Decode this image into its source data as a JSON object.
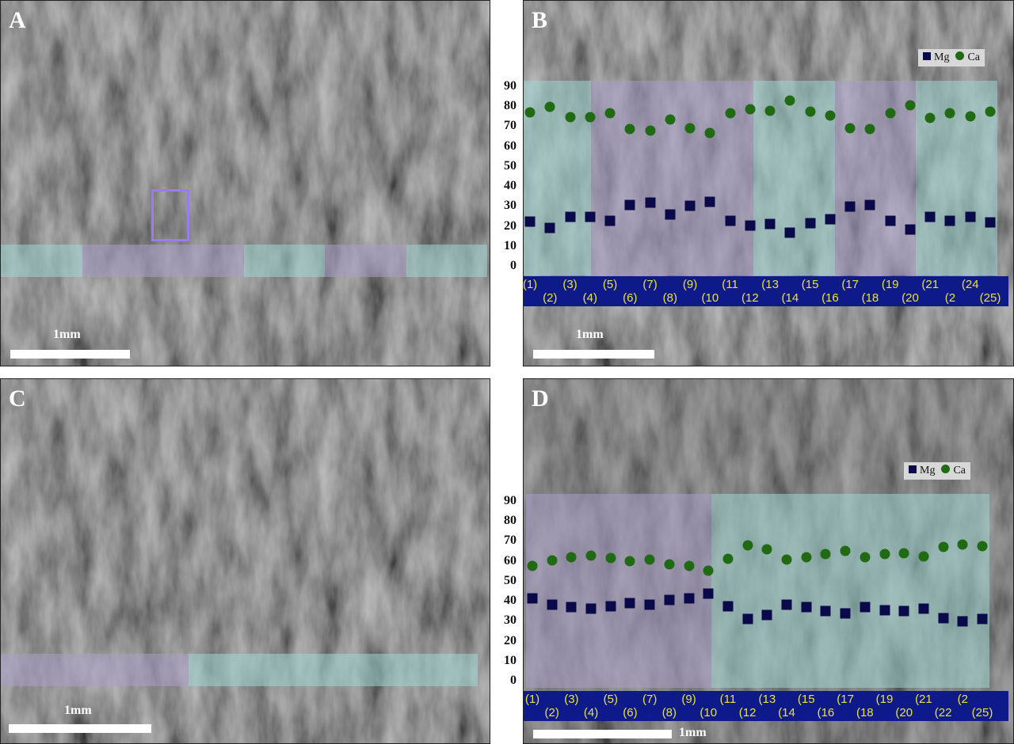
{
  "panels": {
    "A": {
      "letter": "A",
      "scale": "1mm"
    },
    "B": {
      "letter": "B",
      "scale": "1mm"
    },
    "C": {
      "letter": "C",
      "scale": "1mm"
    },
    "D": {
      "letter": "D",
      "scale": "1mm"
    }
  },
  "legend": {
    "mg": "Mg",
    "ca": "Ca"
  },
  "colors": {
    "mg": "#0a0a4a",
    "ca": "#1f6a12",
    "teal_band": "#9fd6cf",
    "purple_band": "#a99ec9",
    "label_bar": "#0f1a8a",
    "label_text": "#e8e23a",
    "roi_box": "#9b7cf0"
  },
  "chart_data": [
    {
      "panel": "B",
      "type": "scatter",
      "ylim": [
        0,
        90
      ],
      "yticks": [
        "90",
        "80",
        "70",
        "60",
        "50",
        "40",
        "30",
        "20",
        "10",
        "0"
      ],
      "xlabels": [
        "(1)",
        "(2)",
        "(3)",
        "(4)",
        "(5)",
        "(6)",
        "(7)",
        "(8)",
        "(9)",
        "(10",
        "(11",
        "(12",
        "(13",
        "(14",
        "(15",
        "(16",
        "(17",
        "(18",
        "(19",
        "(20",
        "(21",
        "(2",
        "(24",
        "(25)"
      ],
      "series": [
        {
          "name": "Mg",
          "marker": "square",
          "values": [
            22.5,
            19.6,
            25.0,
            24.8,
            23.1,
            30.8,
            32.0,
            26.1,
            30.6,
            32.5,
            22.9,
            20.8,
            21.6,
            16.9,
            22.0,
            23.7,
            30.3,
            30.8,
            23.1,
            18.8,
            25.0,
            22.8,
            24.8,
            22.1
          ]
        },
        {
          "name": "Ca",
          "marker": "circle",
          "values": [
            77.5,
            80.1,
            75.0,
            75.0,
            76.9,
            69.0,
            68.0,
            73.6,
            69.2,
            67.2,
            76.8,
            78.8,
            78.0,
            83.3,
            77.9,
            75.8,
            69.4,
            68.8,
            76.9,
            80.9,
            74.7,
            76.9,
            75.3,
            77.6
          ]
        }
      ],
      "bands": [
        "teal",
        "purple",
        "teal",
        "purple",
        "teal"
      ],
      "grid": false,
      "legend_position": "top-right"
    },
    {
      "panel": "D",
      "type": "scatter",
      "ylim": [
        0,
        90
      ],
      "yticks": [
        "90",
        "80",
        "70",
        "60",
        "50",
        "40",
        "30",
        "20",
        "10",
        "0"
      ],
      "xlabels": [
        "(1)",
        "(2)",
        "(3)",
        "(4)",
        "(5)",
        "(6)",
        "(7)",
        "(8)",
        "(9)",
        "(10",
        "(11",
        "(12",
        "(13",
        "(14",
        "(15",
        "(16",
        "(17",
        "(18",
        "(19",
        "(20",
        "(21",
        "(22",
        "(2",
        "(25)"
      ],
      "series": [
        {
          "name": "Mg",
          "marker": "square",
          "values": [
            41.6,
            38.6,
            37.1,
            36.3,
            37.5,
            39.2,
            38.4,
            40.8,
            41.6,
            43.9,
            37.7,
            31.2,
            33.4,
            38.4,
            37.1,
            35.3,
            33.9,
            37.1,
            35.6,
            35.1,
            36.4,
            31.8,
            30.2,
            31.2
          ]
        },
        {
          "name": "Ca",
          "marker": "circle",
          "values": [
            57.8,
            60.6,
            62.2,
            63.0,
            61.8,
            60.2,
            61.0,
            58.6,
            58.0,
            55.4,
            61.4,
            68.0,
            66.2,
            61.0,
            62.4,
            64.0,
            65.4,
            62.4,
            63.9,
            64.3,
            62.8,
            67.4,
            68.6,
            67.8
          ]
        }
      ],
      "bands": [
        "purple",
        "teal"
      ],
      "grid": false,
      "legend_position": "top-right"
    }
  ]
}
